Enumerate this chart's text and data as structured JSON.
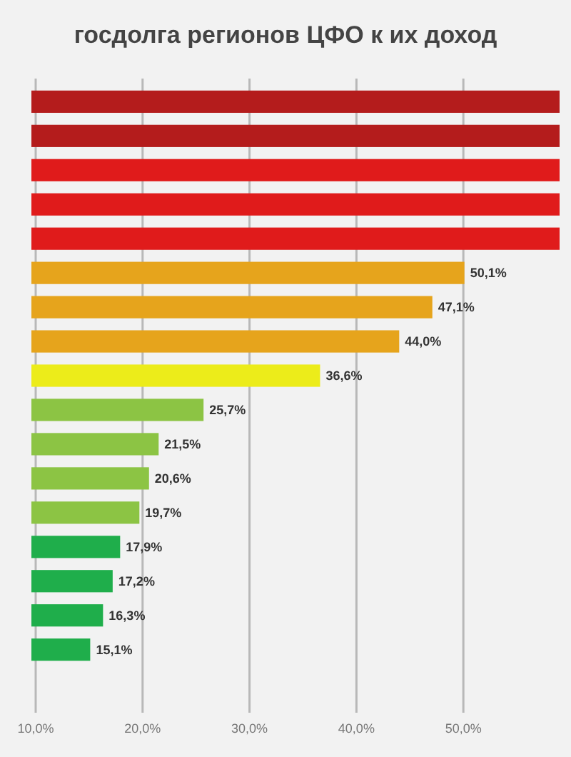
{
  "chart_data": {
    "type": "bar",
    "orientation": "horizontal",
    "title": "госдолга регионов ЦФО к их доход",
    "categories": [
      null,
      null,
      null,
      null,
      null,
      null,
      null,
      null,
      null,
      null,
      null,
      null,
      null,
      null,
      null,
      null,
      null,
      null
    ],
    "values": [
      59,
      59,
      59,
      59,
      59,
      50.1,
      47.1,
      44.0,
      36.6,
      25.7,
      21.5,
      20.6,
      19.7,
      17.9,
      17.2,
      16.3,
      15.1,
      9.6
    ],
    "value_labels": [
      null,
      null,
      null,
      null,
      null,
      "50,1%",
      "47,1%",
      "44,0%",
      "36,6%",
      "25,7%",
      "21,5%",
      "20,6%",
      "19,7%",
      "17,9%",
      "17,2%",
      "16,3%",
      "15,1%",
      null
    ],
    "colors": [
      "#b41c1c",
      "#b41c1c",
      "#e01b1b",
      "#e01b1b",
      "#e01b1b",
      "#e6a41c",
      "#e6a41c",
      "#e6a41c",
      "#ecec1a",
      "#8cc444",
      "#8cc444",
      "#8cc444",
      "#8cc444",
      "#1fae4b",
      "#1fae4b",
      "#1fae4b",
      "#1fae4b",
      "#1fae4b"
    ],
    "xlim": [
      9.6,
      59
    ],
    "xticks": [
      {
        "value": 10,
        "label": "10,0%"
      },
      {
        "value": 20,
        "label": "20,0%"
      },
      {
        "value": 30,
        "label": "30,0%"
      },
      {
        "value": 40,
        "label": "40,0%"
      },
      {
        "value": 50,
        "label": "50,0%"
      }
    ],
    "grid": "x"
  }
}
